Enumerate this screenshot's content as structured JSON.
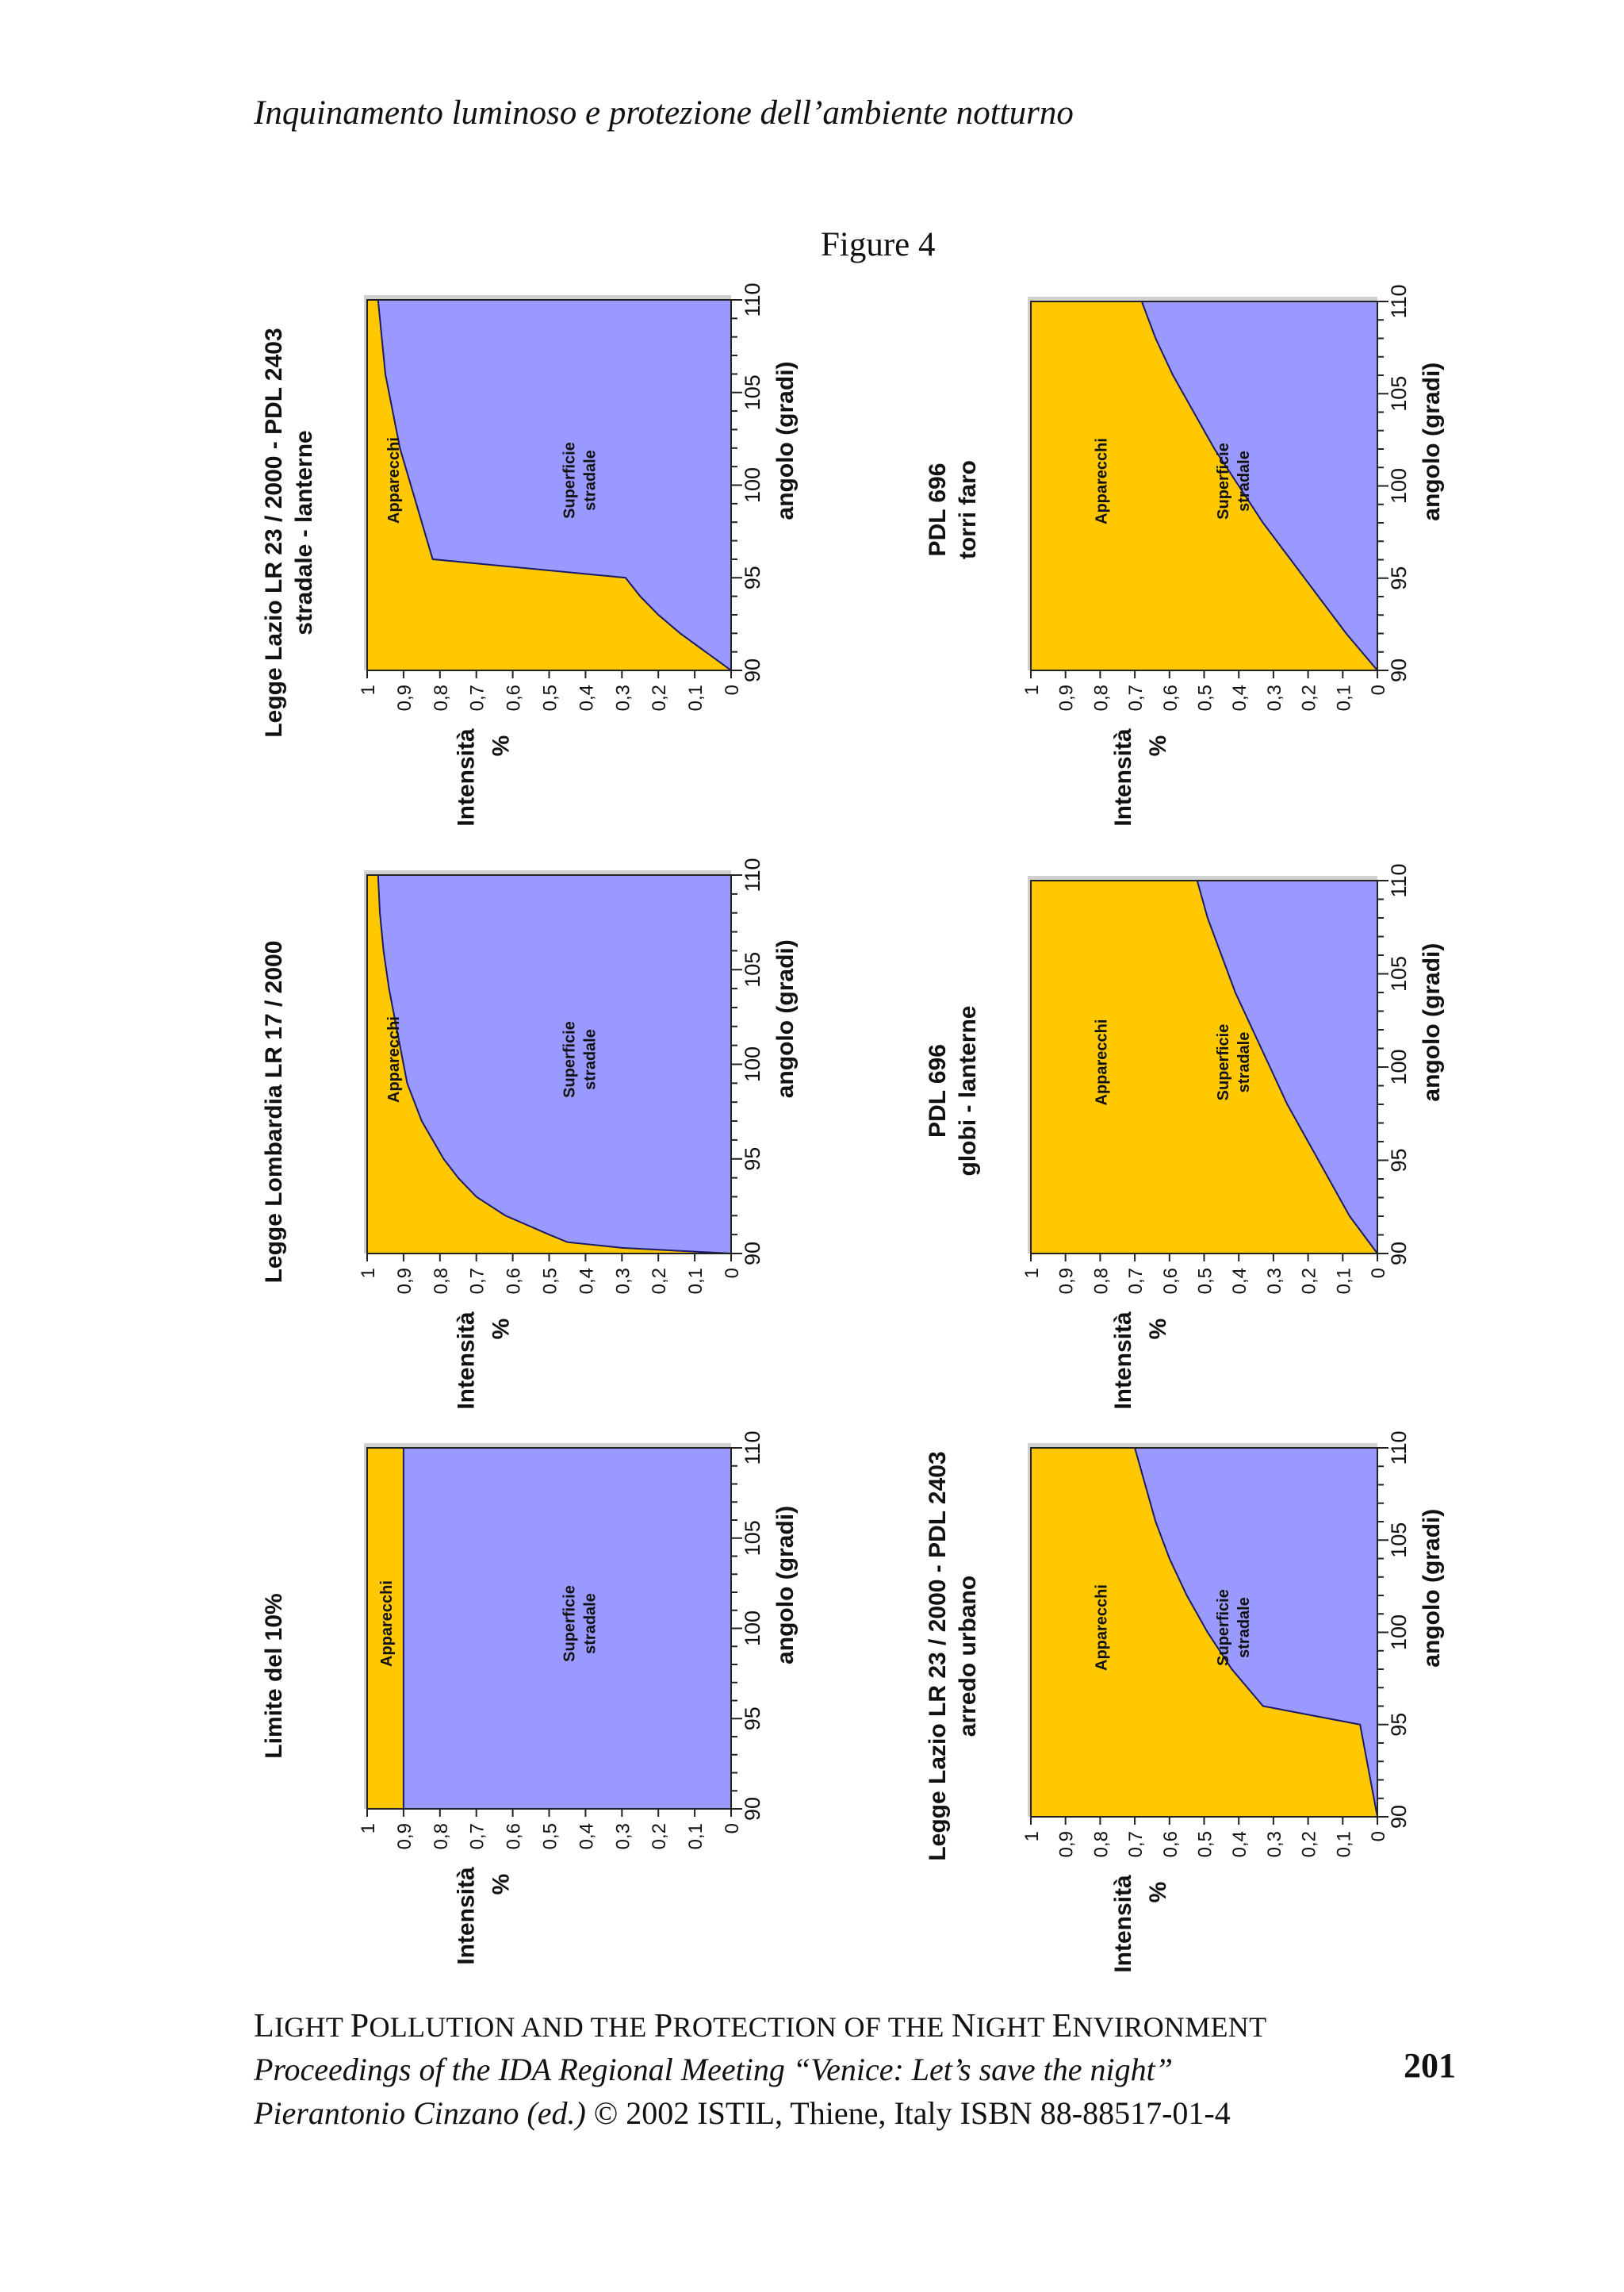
{
  "header": {
    "running_title": "Inquinamento luminoso e protezione dell’ambiente notturno"
  },
  "figure_title": "Figure 4",
  "footer": {
    "line1": {
      "L": "L",
      "IGHT": "IGHT ",
      "P": "P",
      "OLLUTION": "OLLUTION AND THE ",
      "P2": "P",
      "ROTECTION": "ROTECTION OF  THE ",
      "N": "N",
      "IGHT2": "IGHT ",
      "E": "E",
      "NVIRONMENT": "NVIRONMENT"
    },
    "line2": "Proceedings of the IDA Regional Meeting “Venice: Let’s save the night”",
    "line3_italic": "Pierantonio Cinzano (ed.)",
    "line3_rest": " © 2002 ISTIL, Thiene, Italy  ISBN 88-88517-01-4"
  },
  "page_number": "201",
  "colors": {
    "apparecchi": "#FFC800",
    "superficie": "#9999FF",
    "line": "#1a1a66"
  },
  "chart_data": [
    {
      "type": "area",
      "title_lines": [
        "Limite del 10%"
      ],
      "xlabel": "angolo (gradi)",
      "ylabel_lines": [
        "Intensità",
        "%"
      ],
      "xlim": [
        90,
        110
      ],
      "ylim": [
        0,
        1
      ],
      "x_ticks": [
        "90",
        "95",
        "100",
        "105",
        "110"
      ],
      "y_ticks": [
        "0",
        "0,1",
        "0,2",
        "0,3",
        "0,4",
        "0,5",
        "0,6",
        "0,7",
        "0,8",
        "0,9",
        "1"
      ],
      "series": [
        {
          "name": "Apparecchi",
          "label": "Apparecchi"
        },
        {
          "name": "Superficie stradale",
          "label_lines": [
            "Superficie",
            "stradale"
          ]
        }
      ],
      "boundary": {
        "x": [
          90,
          110
        ],
        "y": [
          0.9,
          0.9
        ]
      }
    },
    {
      "type": "area",
      "title_lines": [
        "Legge Lombardia LR 17 / 2000"
      ],
      "xlabel": "angolo (gradi)",
      "ylabel_lines": [
        "Intensità",
        "%"
      ],
      "xlim": [
        90,
        110
      ],
      "ylim": [
        0,
        1
      ],
      "x_ticks": [
        "90",
        "95",
        "100",
        "105",
        "110"
      ],
      "y_ticks": [
        "0",
        "0,1",
        "0,2",
        "0,3",
        "0,4",
        "0,5",
        "0,6",
        "0,7",
        "0,8",
        "0,9",
        "1"
      ],
      "series": [
        {
          "name": "Apparecchi",
          "label": "Apparecchi"
        },
        {
          "name": "Superficie stradale",
          "label_lines": [
            "Superficie",
            "stradale"
          ]
        }
      ],
      "boundary": {
        "x": [
          90,
          90.3,
          90.6,
          91,
          92,
          93,
          94,
          95,
          96,
          97,
          98,
          99,
          100,
          102,
          104,
          106,
          108,
          110
        ],
        "y": [
          0,
          0.3,
          0.45,
          0.5,
          0.62,
          0.7,
          0.75,
          0.79,
          0.82,
          0.85,
          0.87,
          0.89,
          0.9,
          0.92,
          0.94,
          0.955,
          0.965,
          0.97
        ]
      }
    },
    {
      "type": "area",
      "title_lines": [
        "Legge Lazio LR 23 / 2000 - PDL 2403",
        "stradale - lanterne"
      ],
      "xlabel": "angolo (gradi)",
      "ylabel_lines": [
        "Intensità",
        "%"
      ],
      "xlim": [
        90,
        110
      ],
      "ylim": [
        0,
        1
      ],
      "x_ticks": [
        "90",
        "95",
        "100",
        "105",
        "110"
      ],
      "y_ticks": [
        "0",
        "0,1",
        "0,2",
        "0,3",
        "0,4",
        "0,5",
        "0,6",
        "0,7",
        "0,8",
        "0,9",
        "1"
      ],
      "series": [
        {
          "name": "Apparecchi",
          "label": "Apparecchi"
        },
        {
          "name": "Superficie stradale",
          "label_lines": [
            "Superficie",
            "stradale"
          ]
        }
      ],
      "boundary": {
        "x": [
          90,
          91,
          92,
          93,
          94,
          95,
          96,
          98,
          100,
          102,
          104,
          106,
          108,
          110
        ],
        "y": [
          0,
          0.07,
          0.14,
          0.2,
          0.25,
          0.29,
          0.82,
          0.85,
          0.88,
          0.91,
          0.93,
          0.95,
          0.96,
          0.97
        ]
      }
    },
    {
      "type": "area",
      "title_lines": [
        "Legge Lazio LR 23 / 2000 - PDL 2403",
        "arredo urbano"
      ],
      "xlabel": "angolo (gradi)",
      "ylabel_lines": [
        "Intensità",
        "%"
      ],
      "xlim": [
        90,
        110
      ],
      "ylim": [
        0,
        1
      ],
      "x_ticks": [
        "90",
        "95",
        "100",
        "105",
        "110"
      ],
      "y_ticks": [
        "0",
        "0,1",
        "0,2",
        "0,3",
        "0,4",
        "0,5",
        "0,6",
        "0,7",
        "0,8",
        "0,9",
        "1"
      ],
      "series": [
        {
          "name": "Apparecchi",
          "label": "Apparecchi"
        },
        {
          "name": "Superficie stradale",
          "label_lines": [
            "Superficie",
            "stradale"
          ]
        }
      ],
      "boundary": {
        "x": [
          90,
          92,
          95,
          96,
          98,
          100,
          102,
          104,
          106,
          108,
          110
        ],
        "y": [
          0,
          0.02,
          0.05,
          0.33,
          0.42,
          0.49,
          0.55,
          0.6,
          0.64,
          0.67,
          0.7
        ]
      }
    },
    {
      "type": "area",
      "title_lines": [
        "PDL 696",
        "globi - lanterne"
      ],
      "xlabel": "angolo (gradi)",
      "ylabel_lines": [
        "Intensità",
        "%"
      ],
      "xlim": [
        90,
        110
      ],
      "ylim": [
        0,
        1
      ],
      "x_ticks": [
        "90",
        "95",
        "100",
        "105",
        "110"
      ],
      "y_ticks": [
        "0",
        "0,1",
        "0,2",
        "0,3",
        "0,4",
        "0,5",
        "0,6",
        "0,7",
        "0,8",
        "0,9",
        "1"
      ],
      "series": [
        {
          "name": "Apparecchi",
          "label": "Apparecchi"
        },
        {
          "name": "Superficie stradale",
          "label_lines": [
            "Superficie",
            "stradale"
          ]
        }
      ],
      "boundary": {
        "x": [
          90,
          92,
          94,
          96,
          98,
          100,
          102,
          104,
          106,
          108,
          110
        ],
        "y": [
          0,
          0.08,
          0.14,
          0.2,
          0.26,
          0.31,
          0.36,
          0.41,
          0.45,
          0.49,
          0.52
        ]
      }
    },
    {
      "type": "area",
      "title_lines": [
        "PDL 696",
        "torri faro"
      ],
      "xlabel": "angolo (gradi)",
      "ylabel_lines": [
        "Intensità",
        "%"
      ],
      "xlim": [
        90,
        110
      ],
      "ylim": [
        0,
        1
      ],
      "x_ticks": [
        "90",
        "95",
        "100",
        "105",
        "110"
      ],
      "y_ticks": [
        "0",
        "0,1",
        "0,2",
        "0,3",
        "0,4",
        "0,5",
        "0,6",
        "0,7",
        "0,8",
        "0,9",
        "1"
      ],
      "series": [
        {
          "name": "Apparecchi",
          "label": "Apparecchi"
        },
        {
          "name": "Superficie stradale",
          "label_lines": [
            "Superficie",
            "stradale"
          ]
        }
      ],
      "boundary": {
        "x": [
          90,
          92,
          94,
          96,
          98,
          100,
          102,
          104,
          106,
          108,
          110
        ],
        "y": [
          0,
          0.09,
          0.17,
          0.25,
          0.33,
          0.4,
          0.47,
          0.53,
          0.59,
          0.64,
          0.68
        ]
      }
    }
  ]
}
